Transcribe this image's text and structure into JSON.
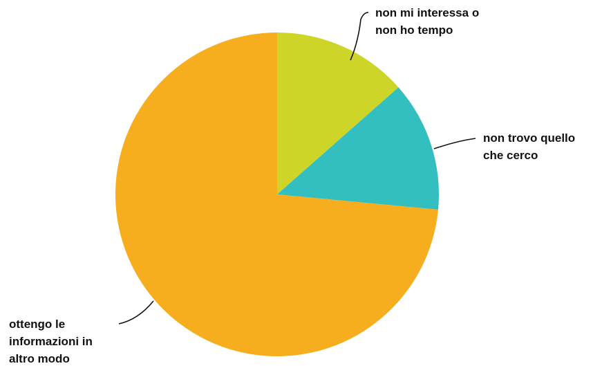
{
  "chart_data": {
    "type": "pie",
    "title": "",
    "slices": [
      {
        "label_lines": [
          "non mi interessa o",
          "non ho tempo"
        ],
        "value": 13.5,
        "color": "#CDD628"
      },
      {
        "label_lines": [
          "non trovo quello",
          "che cerco"
        ],
        "value": 13.0,
        "color": "#33BEC0"
      },
      {
        "label_lines": [
          "ottengo le",
          "informazioni in",
          "altro modo"
        ],
        "value": 73.5,
        "color": "#F6AE1E"
      }
    ],
    "start_angle": "12 o'clock",
    "direction": "clockwise",
    "legend": "none (labels beside slices)"
  }
}
